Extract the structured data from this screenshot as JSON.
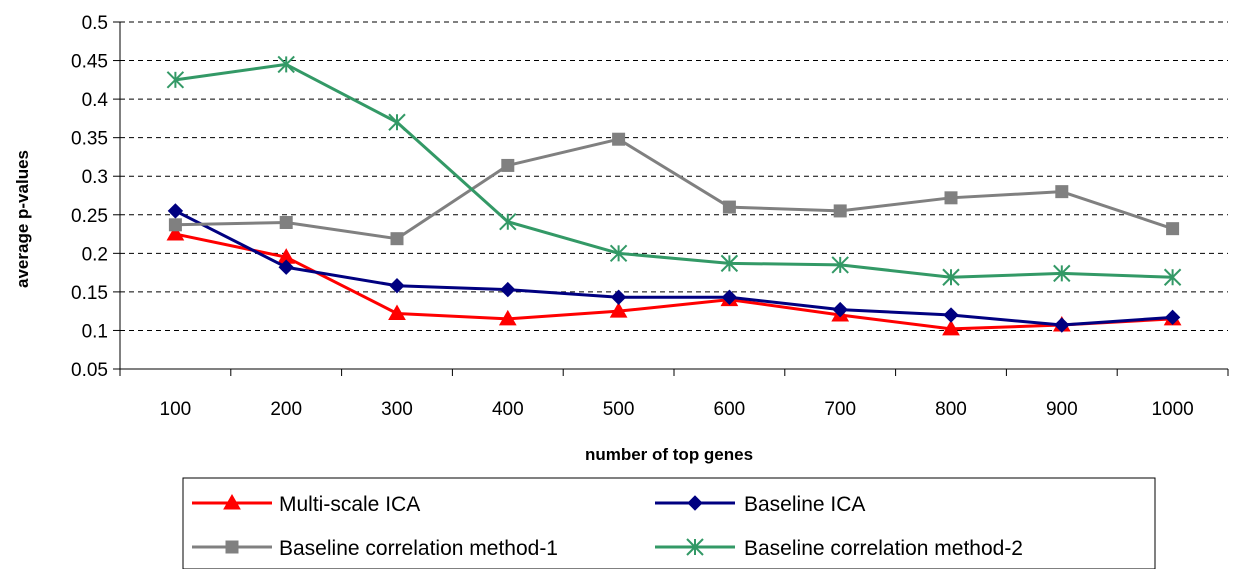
{
  "chart_data": {
    "type": "line",
    "title": "",
    "xlabel": "number of top genes",
    "ylabel": "average p-values",
    "categories": [
      "100",
      "200",
      "300",
      "400",
      "500",
      "600",
      "700",
      "800",
      "900",
      "1000"
    ],
    "ylim": [
      0.05,
      0.5
    ],
    "yticks": [
      "0.05",
      "0.1",
      "0.15",
      "0.2",
      "0.25",
      "0.3",
      "0.35",
      "0.4",
      "0.45",
      "0.5"
    ],
    "grid": "horizontal dashed",
    "legend_position": "bottom",
    "series": [
      {
        "name": "Multi-scale ICA",
        "color": "#ff0000",
        "marker": "triangle",
        "values": [
          0.225,
          0.195,
          0.122,
          0.115,
          0.125,
          0.14,
          0.12,
          0.102,
          0.107,
          0.115
        ]
      },
      {
        "name": "Baseline ICA",
        "color": "#000080",
        "marker": "diamond",
        "values": [
          0.255,
          0.182,
          0.158,
          0.153,
          0.143,
          0.143,
          0.127,
          0.12,
          0.107,
          0.117
        ]
      },
      {
        "name": "Baseline correlation method-1",
        "color": "#808080",
        "marker": "square",
        "values": [
          0.237,
          0.24,
          0.219,
          0.314,
          0.348,
          0.26,
          0.255,
          0.272,
          0.28,
          0.232
        ]
      },
      {
        "name": "Baseline correlation method-2",
        "color": "#339966",
        "marker": "asterisk",
        "values": [
          0.425,
          0.445,
          0.37,
          0.241,
          0.2,
          0.187,
          0.185,
          0.169,
          0.174,
          0.169
        ]
      }
    ]
  }
}
